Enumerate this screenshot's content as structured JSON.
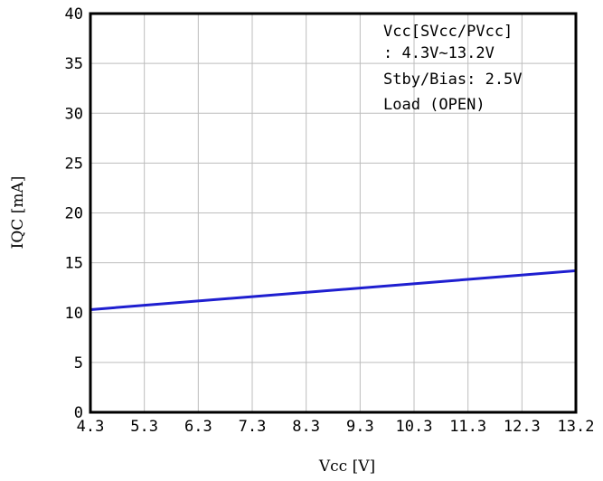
{
  "chart_data": {
    "type": "line",
    "xlabel": "Vcc  [V]",
    "ylabel": "IQC [mA]",
    "xlim": [
      4.3,
      13.2
    ],
    "ylim": [
      0,
      40
    ],
    "grid": true,
    "x_ticks": [
      "4.3",
      "5.3",
      "6.3",
      "7.3",
      "8.3",
      "9.3",
      "10.3",
      "11.3",
      "12.3",
      "13.2"
    ],
    "y_ticks": [
      "0",
      "5",
      "10",
      "15",
      "20",
      "25",
      "30",
      "35",
      "40"
    ],
    "series": [
      {
        "color": "#1f1fd0",
        "x": [
          4.3,
          13.2
        ],
        "y": [
          10.3,
          14.2
        ]
      }
    ],
    "annotations": [
      "Vcc[SVcc/PVcc]",
      ": 4.3V~13.2V",
      "Stby/Bias: 2.5V",
      "Load (OPEN)"
    ]
  }
}
